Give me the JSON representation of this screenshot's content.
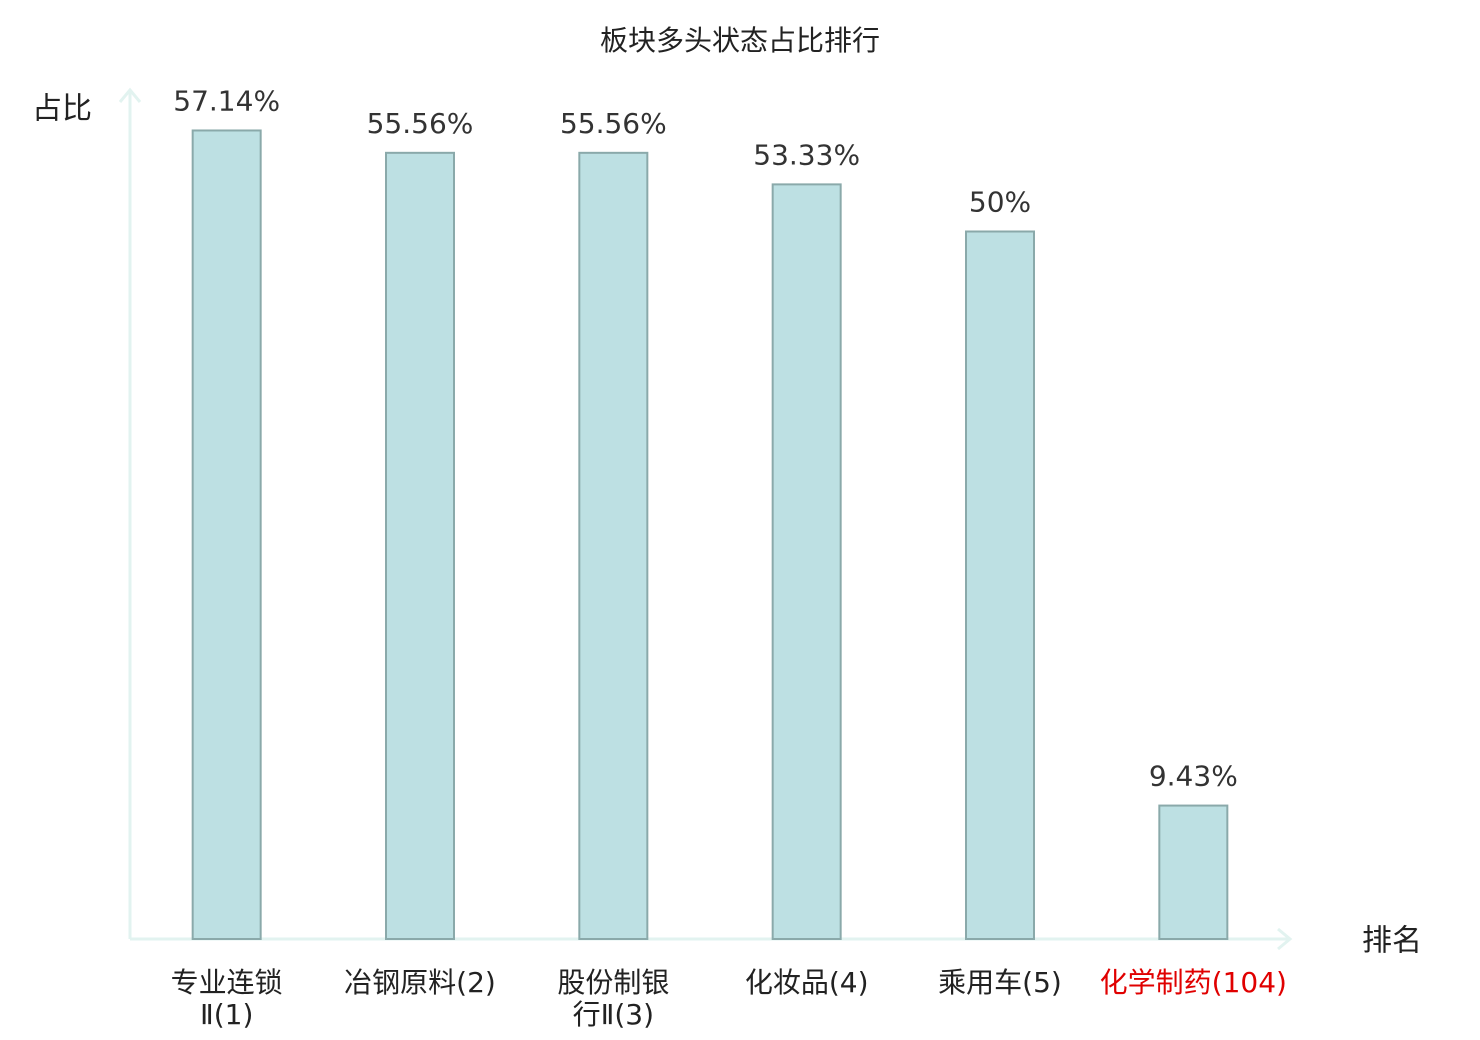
{
  "chart_data": {
    "type": "bar",
    "title": "板块多头状态占比排行",
    "y_label": "占比",
    "x_label": "排名",
    "categories": [
      "专业连锁Ⅱ(1)",
      "冶钢原料(2)",
      "股份制银行Ⅱ(3)",
      "化妆品(4)",
      "乘用车(5)",
      "化学制药(104)"
    ],
    "values": [
      57.14,
      55.56,
      55.56,
      53.33,
      50,
      9.43
    ],
    "value_labels": [
      "57.14%",
      "55.56%",
      "55.56%",
      "53.33%",
      "50%",
      "9.43%"
    ],
    "color": "#bde0e3",
    "edge_color": "#8aa9aa",
    "category_colors": [
      "#222222",
      "#222222",
      "#222222",
      "#222222",
      "#222222",
      "#e00000"
    ],
    "ylim": [
      0,
      60
    ]
  }
}
